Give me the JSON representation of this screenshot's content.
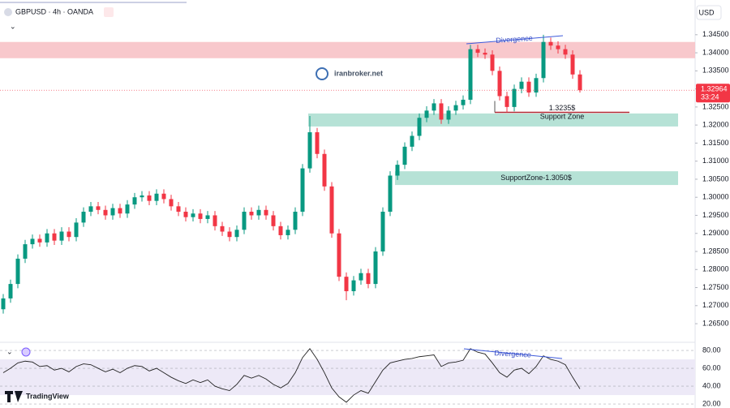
{
  "page": {
    "watermark": "iranbroker.net",
    "brand": "TradingView"
  },
  "chart_data": [
    {
      "type": "candlestick",
      "title": "GBPUSD · 4h · OANDA",
      "currency": "USD",
      "open": [
        1.269,
        1.272,
        1.276,
        1.283,
        1.287,
        1.2885,
        1.2875,
        1.29,
        1.288,
        1.2905,
        1.289,
        1.293,
        1.296,
        1.2975,
        1.2965,
        1.295,
        1.297,
        1.2955,
        1.298,
        1.3,
        1.3005,
        1.299,
        1.301,
        1.2995,
        1.2975,
        1.296,
        1.2945,
        1.2955,
        1.294,
        1.295,
        1.292,
        1.2905,
        1.289,
        1.291,
        1.296,
        1.295,
        1.2965,
        1.295,
        1.292,
        1.2895,
        1.291,
        1.296,
        1.308,
        1.318,
        1.312,
        1.303,
        1.29,
        1.278,
        1.274,
        1.277,
        1.279,
        1.276,
        1.285,
        1.296,
        1.306,
        1.309,
        1.314,
        1.317,
        1.322,
        1.324,
        1.326,
        1.3215,
        1.324,
        1.3255,
        1.327,
        1.341,
        1.34,
        1.3395,
        1.335,
        1.328,
        1.325,
        1.33,
        1.332,
        1.329,
        1.333,
        1.343,
        1.342,
        1.341,
        1.3395,
        1.334
      ],
      "high": [
        1.2732,
        1.2772,
        1.2842,
        1.2882,
        1.2897,
        1.2897,
        1.2912,
        1.2912,
        1.2917,
        1.2917,
        1.2942,
        1.2972,
        1.2987,
        1.2987,
        1.2977,
        1.2982,
        1.2982,
        1.2992,
        1.3012,
        1.3017,
        1.3017,
        1.3022,
        1.3022,
        1.3007,
        1.2987,
        1.2972,
        1.2967,
        1.2967,
        1.2962,
        1.2962,
        1.2932,
        1.2917,
        1.2922,
        1.2972,
        1.2972,
        1.2977,
        1.2977,
        1.2962,
        1.2932,
        1.2922,
        1.2972,
        1.3092,
        1.3225,
        1.3192,
        1.3132,
        1.3042,
        1.2912,
        1.2792,
        1.2782,
        1.2802,
        1.2802,
        1.2862,
        1.2972,
        1.3072,
        1.3102,
        1.3152,
        1.3182,
        1.3232,
        1.3252,
        1.3272,
        1.3272,
        1.3252,
        1.3267,
        1.3282,
        1.3422,
        1.3422,
        1.3412,
        1.3407,
        1.3362,
        1.3292,
        1.3312,
        1.3332,
        1.3332,
        1.3342,
        1.345,
        1.3442,
        1.3432,
        1.3422,
        1.3407,
        1.3352
      ],
      "low": [
        1.2678,
        1.2708,
        1.2748,
        1.2818,
        1.2858,
        1.2863,
        1.2863,
        1.2868,
        1.2868,
        1.2878,
        1.2878,
        1.2918,
        1.2948,
        1.2953,
        1.2938,
        1.2938,
        1.2943,
        1.2943,
        1.2968,
        1.2988,
        1.2978,
        1.2978,
        1.2983,
        1.2963,
        1.2948,
        1.2933,
        1.2933,
        1.2928,
        1.2928,
        1.2908,
        1.2893,
        1.2878,
        1.2878,
        1.2898,
        1.2938,
        1.2938,
        1.2938,
        1.2908,
        1.2883,
        1.2883,
        1.2898,
        1.2948,
        1.3068,
        1.3108,
        1.3018,
        1.2888,
        1.2768,
        1.2715,
        1.2728,
        1.2758,
        1.2748,
        1.2748,
        1.2838,
        1.2948,
        1.3048,
        1.3078,
        1.3128,
        1.3158,
        1.3208,
        1.3228,
        1.3203,
        1.3203,
        1.3228,
        1.3243,
        1.3258,
        1.3388,
        1.3383,
        1.3338,
        1.3268,
        1.3235,
        1.3238,
        1.3288,
        1.3278,
        1.3278,
        1.3318,
        1.3408,
        1.3398,
        1.3383,
        1.3328,
        1.329
      ],
      "close": [
        1.272,
        1.276,
        1.283,
        1.287,
        1.2885,
        1.2875,
        1.29,
        1.288,
        1.2905,
        1.289,
        1.293,
        1.296,
        1.2975,
        1.2965,
        1.295,
        1.297,
        1.2955,
        1.298,
        1.3,
        1.3005,
        1.299,
        1.301,
        1.2995,
        1.2975,
        1.296,
        1.2945,
        1.2955,
        1.294,
        1.295,
        1.292,
        1.2905,
        1.289,
        1.291,
        1.296,
        1.295,
        1.2965,
        1.295,
        1.292,
        1.2895,
        1.291,
        1.296,
        1.308,
        1.318,
        1.312,
        1.303,
        1.29,
        1.278,
        1.274,
        1.277,
        1.279,
        1.276,
        1.285,
        1.296,
        1.306,
        1.309,
        1.314,
        1.317,
        1.322,
        1.324,
        1.326,
        1.3215,
        1.324,
        1.3255,
        1.327,
        1.341,
        1.34,
        1.3395,
        1.335,
        1.328,
        1.325,
        1.33,
        1.332,
        1.329,
        1.333,
        1.343,
        1.342,
        1.341,
        1.3395,
        1.334,
        1.32964
      ],
      "up_color": "#089981",
      "down_color": "#f23645",
      "ylim": [
        1.2603,
        1.349
      ],
      "yticks": [
        {
          "value": 1.265,
          "label": "1.26500"
        },
        {
          "value": 1.27,
          "label": "1.27000"
        },
        {
          "value": 1.275,
          "label": "1.27500"
        },
        {
          "value": 1.28,
          "label": "1.28000"
        },
        {
          "value": 1.285,
          "label": "1.28500"
        },
        {
          "value": 1.29,
          "label": "1.29000"
        },
        {
          "value": 1.295,
          "label": "1.29500"
        },
        {
          "value": 1.3,
          "label": "1.30000"
        },
        {
          "value": 1.305,
          "label": "1.30500"
        },
        {
          "value": 1.31,
          "label": "1.31000"
        },
        {
          "value": 1.315,
          "label": "1.31500"
        },
        {
          "value": 1.32,
          "label": "1.32000"
        },
        {
          "value": 1.325,
          "label": "1.32500"
        },
        {
          "value": 1.33,
          "label": "1.33000"
        },
        {
          "value": 1.335,
          "label": "1.33500"
        },
        {
          "value": 1.34,
          "label": "1.34000"
        },
        {
          "value": 1.345,
          "label": "1.34500"
        }
      ],
      "last_price": 1.32964,
      "countdown": "33:24",
      "last_color": "#f23645",
      "zones": [
        {
          "ylim": [
            1.3385,
            1.343
          ],
          "color": "#f8c8cc"
        },
        {
          "ylim": [
            1.3196,
            1.3232
          ],
          "color": "#b6e2d6",
          "label": "Support Zone"
        },
        {
          "ylim": [
            1.3034,
            1.3072
          ],
          "color": "#b6e2d6",
          "label": "SupportZone-1.3050$"
        }
      ],
      "level": {
        "value": 1.3235,
        "label": "1.3235$",
        "color": "#b22833"
      },
      "annotation": "Divergence"
    },
    {
      "type": "line",
      "values": [
        55,
        60,
        66,
        68,
        67,
        62,
        63,
        58,
        60,
        56,
        62,
        65,
        64,
        60,
        56,
        59,
        55,
        60,
        63,
        62,
        57,
        60,
        55,
        50,
        46,
        43,
        47,
        44,
        47,
        40,
        37,
        35,
        42,
        52,
        49,
        52,
        48,
        42,
        38,
        43,
        55,
        72,
        82,
        70,
        55,
        38,
        28,
        22,
        30,
        35,
        32,
        45,
        58,
        66,
        68,
        70,
        71,
        73,
        74,
        75,
        62,
        66,
        67,
        69,
        82,
        78,
        76,
        66,
        55,
        50,
        58,
        60,
        54,
        62,
        74,
        70,
        68,
        64,
        50,
        37
      ],
      "color": "#222222",
      "band": [
        30,
        70
      ],
      "band_color": "#ede9f7",
      "ylim": [
        15.5,
        86.4
      ],
      "yticks": [
        {
          "value": 20,
          "label": "20.00"
        },
        {
          "value": 40,
          "label": "40.00"
        },
        {
          "value": 60,
          "label": "60.00"
        },
        {
          "value": 80,
          "label": "80.00"
        }
      ],
      "annotation": "Divergence"
    }
  ]
}
